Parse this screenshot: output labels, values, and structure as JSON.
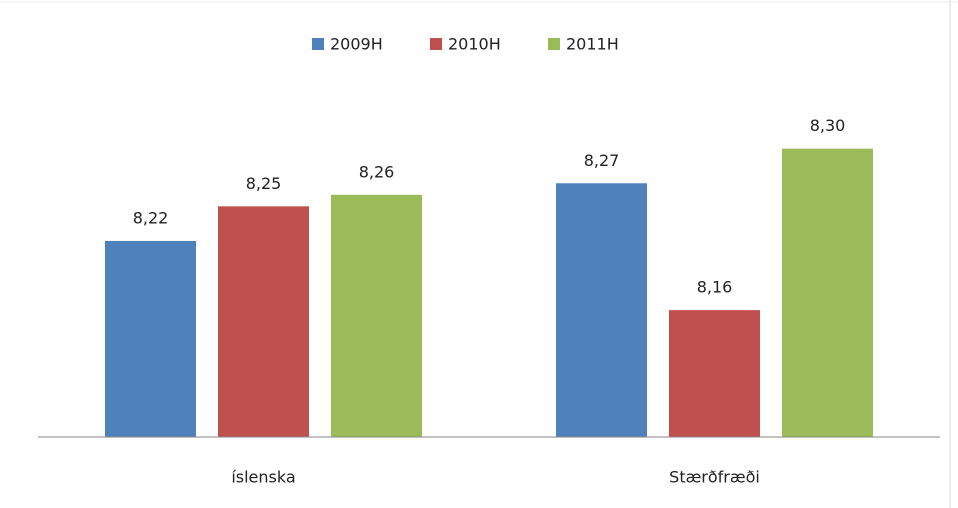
{
  "chart_data": {
    "type": "bar",
    "categories": [
      "íslenska",
      "Stærðfræði"
    ],
    "series": [
      {
        "name": "2009H",
        "color": "#4f81bd",
        "values": [
          8.22,
          8.27
        ],
        "value_labels": [
          "8,22",
          "8,27"
        ]
      },
      {
        "name": "2010H",
        "color": "#c0504d",
        "values": [
          8.25,
          8.16
        ],
        "value_labels": [
          "8,25",
          "8,16"
        ]
      },
      {
        "name": "2011H",
        "color": "#9bbb59",
        "values": [
          8.26,
          8.3
        ],
        "value_labels": [
          "8,26",
          "8,30"
        ]
      }
    ],
    "ylim": [
      8.05,
      8.35
    ],
    "legend": "top"
  }
}
